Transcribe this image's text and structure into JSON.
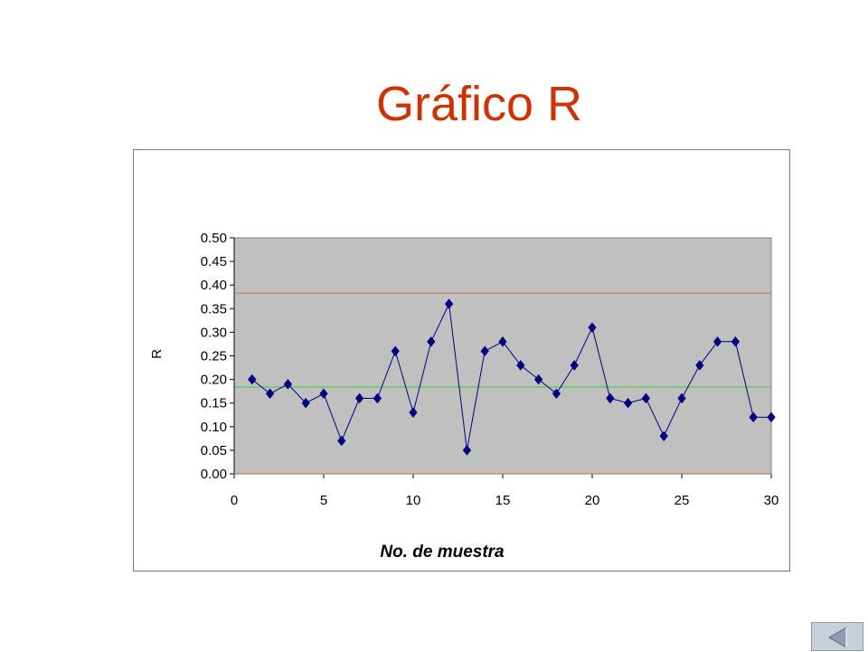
{
  "slide": {
    "title": "Gráfico R"
  },
  "navigation": {
    "back_icon": "triangle-left-icon"
  },
  "colors": {
    "title": "#cc3300",
    "plot_background": "#c0c0c0",
    "series": "#000080",
    "center_line": "#33cc33",
    "control_limits": "#cc6633"
  },
  "chart_data": {
    "type": "line",
    "title": "",
    "xlabel": "No. de muestra",
    "ylabel": "R",
    "xlim": [
      0,
      30
    ],
    "ylim": [
      0,
      0.5
    ],
    "x_ticks": [
      "0",
      "5",
      "10",
      "15",
      "20",
      "25",
      "30"
    ],
    "y_ticks": [
      "0.00",
      "0.05",
      "0.10",
      "0.15",
      "0.20",
      "0.25",
      "0.30",
      "0.35",
      "0.40",
      "0.45",
      "0.50"
    ],
    "grid": false,
    "marker": "diamond",
    "series": [
      {
        "x": [
          1,
          2,
          3,
          4,
          5,
          6,
          7,
          8,
          9,
          10,
          11,
          12,
          13,
          14,
          15,
          16,
          17,
          18,
          19,
          20,
          21,
          22,
          23,
          24,
          25,
          26,
          27,
          28,
          29,
          30
        ],
        "values": [
          0.2,
          0.17,
          0.19,
          0.15,
          0.17,
          0.07,
          0.16,
          0.16,
          0.26,
          0.13,
          0.28,
          0.36,
          0.05,
          0.26,
          0.28,
          0.23,
          0.2,
          0.17,
          0.23,
          0.31,
          0.16,
          0.15,
          0.16,
          0.08,
          0.16,
          0.23,
          0.28,
          0.28,
          0.12,
          0.12
        ]
      }
    ],
    "center_line": 0.184,
    "upper_control_limit": 0.383,
    "lower_control_limit": 0.0
  }
}
